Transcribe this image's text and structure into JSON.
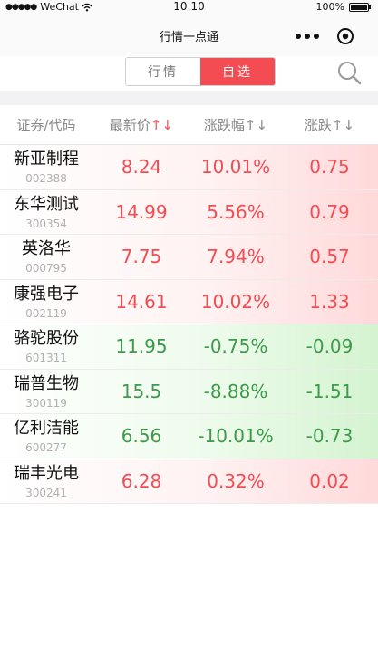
{
  "status_bar": {
    "signal": "●●●●●",
    "carrier": "WeChat",
    "wifi_icon": "wifi-icon",
    "time": "10:10",
    "battery_percent": "100%",
    "battery_level": 1.0
  },
  "nav": {
    "title": "行情一点通"
  },
  "tabs": [
    {
      "label": "行情",
      "active": false
    },
    {
      "label": "自选",
      "active": true
    }
  ],
  "colors": {
    "up": "#f34d53",
    "down": "#3c9a4a",
    "accent": "#f34d53"
  },
  "table": {
    "headers": [
      {
        "label": "证券/代码",
        "arrows": []
      },
      {
        "label": "最新价",
        "arrows": [
          {
            "glyph": "↑",
            "color": "red"
          },
          {
            "glyph": "↓",
            "color": "red"
          }
        ]
      },
      {
        "label": "涨跌幅",
        "arrows": [
          {
            "glyph": "↑",
            "color": "grey"
          },
          {
            "glyph": "↓",
            "color": "grey"
          }
        ]
      },
      {
        "label": "涨跌",
        "arrows": [
          {
            "glyph": "↑",
            "color": "grey"
          },
          {
            "glyph": "↓",
            "color": "grey"
          }
        ]
      }
    ],
    "rows": [
      {
        "name": "新亚制程",
        "code": "002388",
        "price": "8.24",
        "pct": "10.01%",
        "change": "0.75",
        "trend": "up"
      },
      {
        "name": "东华测试",
        "code": "300354",
        "price": "14.99",
        "pct": "5.56%",
        "change": "0.79",
        "trend": "up"
      },
      {
        "name": "英洛华",
        "code": "000795",
        "price": "7.75",
        "pct": "7.94%",
        "change": "0.57",
        "trend": "up"
      },
      {
        "name": "康强电子",
        "code": "002119",
        "price": "14.61",
        "pct": "10.02%",
        "change": "1.33",
        "trend": "up"
      },
      {
        "name": "骆驼股份",
        "code": "601311",
        "price": "11.95",
        "pct": "-0.75%",
        "change": "-0.09",
        "trend": "down"
      },
      {
        "name": "瑞普生物",
        "code": "300119",
        "price": "15.5",
        "pct": "-8.88%",
        "change": "-1.51",
        "trend": "down"
      },
      {
        "name": "亿利洁能",
        "code": "600277",
        "price": "6.56",
        "pct": "-10.01%",
        "change": "-0.73",
        "trend": "down"
      },
      {
        "name": "瑞丰光电",
        "code": "300241",
        "price": "6.28",
        "pct": "0.32%",
        "change": "0.02",
        "trend": "up"
      }
    ]
  }
}
